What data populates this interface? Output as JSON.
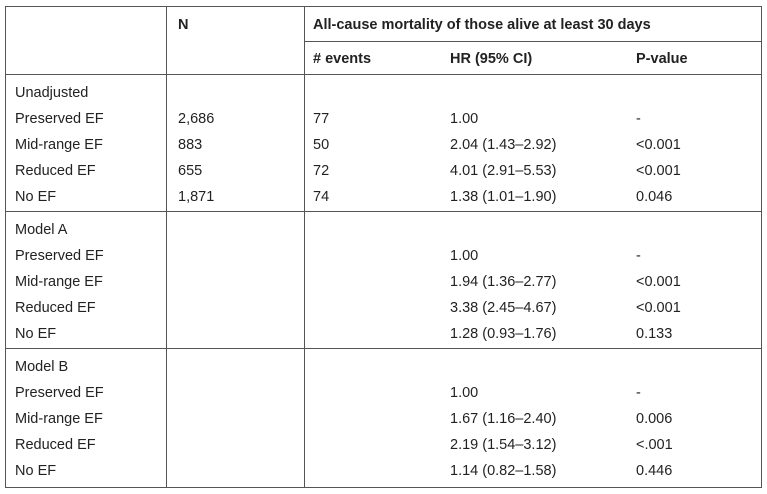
{
  "header": {
    "n": "N",
    "outcome": "All-cause mortality of those alive at least 30 days",
    "events": "# events",
    "hr": "HR (95% CI)",
    "pvalue": "P-value"
  },
  "sections": [
    {
      "title": "Unadjusted",
      "rows": [
        {
          "label": "Preserved EF",
          "n": "2,686",
          "events": "77",
          "hr": "1.00",
          "p": "-"
        },
        {
          "label": "Mid-range EF",
          "n": "883",
          "events": "50",
          "hr": "2.04 (1.43–2.92)",
          "p": "<0.001"
        },
        {
          "label": "Reduced EF",
          "n": "655",
          "events": "72",
          "hr": "4.01 (2.91–5.53)",
          "p": "<0.001"
        },
        {
          "label": "No EF",
          "n": "1,871",
          "events": "74",
          "hr": "1.38 (1.01–1.90)",
          "p": "0.046"
        }
      ]
    },
    {
      "title": "Model A",
      "rows": [
        {
          "label": "Preserved EF",
          "n": "",
          "events": "",
          "hr": "1.00",
          "p": "-"
        },
        {
          "label": "Mid-range EF",
          "n": "",
          "events": "",
          "hr": "1.94 (1.36–2.77)",
          "p": "<0.001"
        },
        {
          "label": "Reduced EF",
          "n": "",
          "events": "",
          "hr": "3.38 (2.45–4.67)",
          "p": "<0.001"
        },
        {
          "label": "No EF",
          "n": "",
          "events": "",
          "hr": "1.28 (0.93–1.76)",
          "p": "0.133"
        }
      ]
    },
    {
      "title": "Model B",
      "rows": [
        {
          "label": "Preserved EF",
          "n": "",
          "events": "",
          "hr": "1.00",
          "p": "-"
        },
        {
          "label": "Mid-range EF",
          "n": "",
          "events": "",
          "hr": "1.67 (1.16–2.40)",
          "p": "0.006"
        },
        {
          "label": "Reduced EF",
          "n": "",
          "events": "",
          "hr": "2.19 (1.54–3.12)",
          "p": "<.001"
        },
        {
          "label": "No EF",
          "n": "",
          "events": "",
          "hr": "1.14 (0.82–1.58)",
          "p": "0.446"
        }
      ]
    }
  ]
}
